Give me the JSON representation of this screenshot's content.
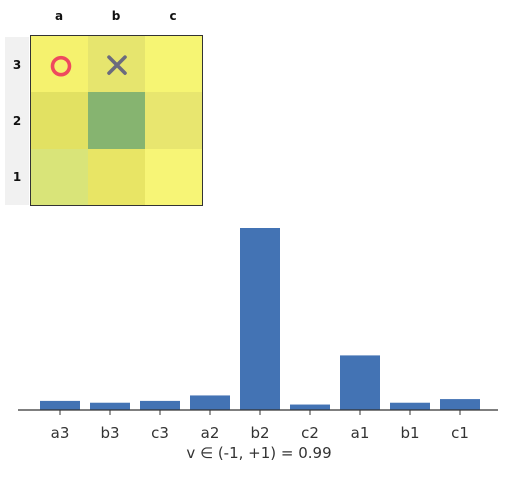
{
  "board": {
    "columns": [
      "a",
      "b",
      "c"
    ],
    "rows": [
      "3",
      "2",
      "1"
    ],
    "cells": [
      {
        "id": "a3",
        "color": "#f5f26e",
        "mark": "o"
      },
      {
        "id": "b3",
        "color": "#e6e56e",
        "mark": "x"
      },
      {
        "id": "c3",
        "color": "#f6f573",
        "mark": ""
      },
      {
        "id": "a2",
        "color": "#e2e162",
        "mark": ""
      },
      {
        "id": "b2",
        "color": "#86b470",
        "mark": ""
      },
      {
        "id": "c2",
        "color": "#e8e66f",
        "mark": ""
      },
      {
        "id": "a1",
        "color": "#d9e479",
        "mark": ""
      },
      {
        "id": "b1",
        "color": "#e8e565",
        "mark": ""
      },
      {
        "id": "c1",
        "color": "#f7f576",
        "mark": ""
      }
    ],
    "o_color": "#ee4a5e",
    "x_color": "#6b6b7e"
  },
  "chart_data": {
    "type": "bar",
    "categories": [
      "a3",
      "b3",
      "c3",
      "a2",
      "b2",
      "c2",
      "a1",
      "b1",
      "c1"
    ],
    "values": [
      0.05,
      0.04,
      0.05,
      0.08,
      1.0,
      0.03,
      0.3,
      0.04,
      0.06
    ],
    "ylim": [
      0,
      1.0
    ],
    "bar_color": "#4373b4",
    "xlabel": "v ∈ (-1, +1) = 0.99"
  }
}
